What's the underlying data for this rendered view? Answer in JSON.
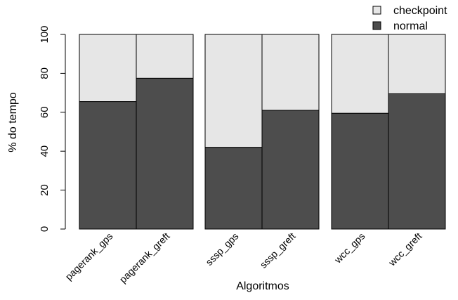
{
  "chart_data": {
    "type": "bar",
    "stacked": true,
    "percent": true,
    "xlabel": "Algoritmos",
    "ylabel": "% do tempo",
    "ylim": [
      0,
      100
    ],
    "yticks": [
      "0",
      "20",
      "40",
      "60",
      "80",
      "100"
    ],
    "categories": [
      "pagerank_gps",
      "pagerank_greft",
      "sssp_gps",
      "sssp_greft",
      "wcc_gps",
      "wcc_greft"
    ],
    "groups": [
      [
        "pagerank_gps",
        "pagerank_greft"
      ],
      [
        "sssp_gps",
        "sssp_greft"
      ],
      [
        "wcc_gps",
        "wcc_greft"
      ]
    ],
    "series": [
      {
        "name": "normal",
        "color": "#4d4d4d",
        "values": [
          65.5,
          77.5,
          42,
          61,
          59.5,
          69.5
        ]
      },
      {
        "name": "checkpoint",
        "color": "#e6e6e6",
        "values": [
          34.5,
          22.5,
          58,
          39,
          40.5,
          30.5
        ]
      }
    ],
    "legend": {
      "position": "top-right",
      "entries": [
        {
          "label": "checkpoint",
          "color": "#e6e6e6"
        },
        {
          "label": "normal",
          "color": "#4d4d4d"
        }
      ]
    },
    "grid": false
  }
}
